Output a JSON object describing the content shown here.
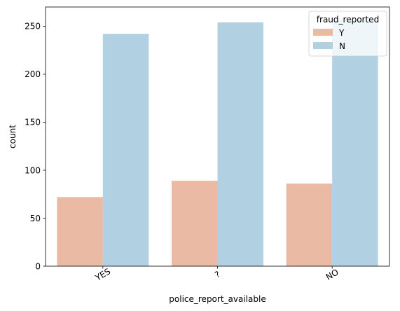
{
  "chart_data": {
    "type": "bar",
    "title": "",
    "xlabel": "police_report_available",
    "ylabel": "count",
    "categories": [
      "YES",
      "?",
      "NO"
    ],
    "series": [
      {
        "name": "Y",
        "values": [
          72,
          89,
          86
        ],
        "color": "#ebbaa5"
      },
      {
        "name": "N",
        "values": [
          242,
          254,
          257
        ],
        "color": "#b1d0e2"
      }
    ],
    "ylim": [
      0,
      270
    ],
    "yticks": [
      0,
      50,
      100,
      150,
      200,
      250
    ],
    "xtick_rotation_deg": 30,
    "grid": false,
    "legend": {
      "title": "fraud_reported",
      "placement": "top-right"
    }
  }
}
